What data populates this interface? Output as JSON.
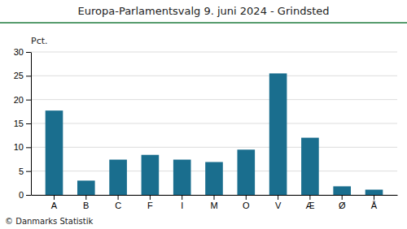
{
  "chart_data": {
    "type": "bar",
    "title": "Europa-Parlamentsvalg 9. juni 2024 - Grindsted",
    "categories": [
      "A",
      "B",
      "C",
      "F",
      "I",
      "M",
      "O",
      "V",
      "Æ",
      "Ø",
      "Å"
    ],
    "values": [
      17.7,
      3.0,
      7.4,
      8.4,
      7.4,
      6.9,
      9.5,
      25.5,
      12.0,
      1.8,
      1.1
    ],
    "color": "#1a6e8e",
    "ylabel": "Pct.",
    "annotations": [
      "© Danmarks Statistik"
    ],
    "ylim": [
      0,
      30
    ],
    "yticks": [
      0,
      5,
      10,
      15,
      20,
      25,
      30
    ],
    "grid": true
  }
}
